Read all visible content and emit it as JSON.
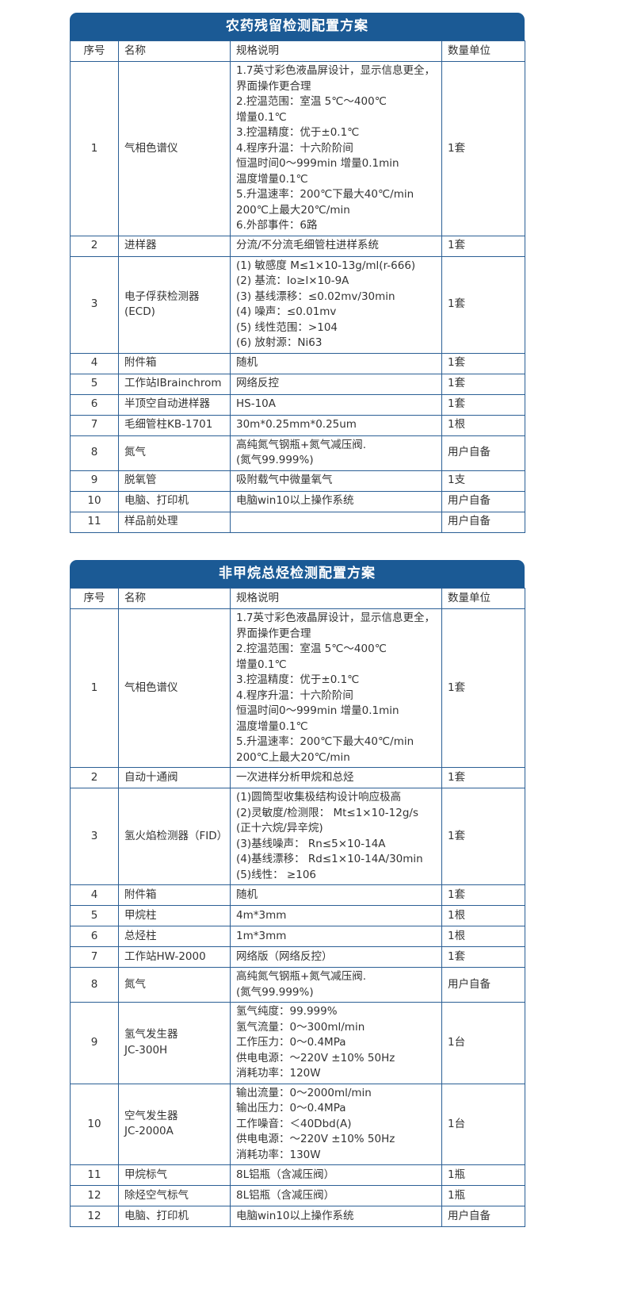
{
  "colors": {
    "accent": "#1b5a95",
    "border": "#2b5f95"
  },
  "tables": [
    {
      "title": "农药残留检测配置方案",
      "headers": [
        "序号",
        "名称",
        "规格说明",
        "数量单位"
      ],
      "rows": [
        [
          "1",
          "气相色谱仪",
          "1.7英寸彩色液晶屏设计，显示信息更全，界面操作更合理\n2.控温范围：室温 5℃～400℃\n增量0.1℃\n3.控温精度：优于±0.1℃\n4.程序升温：十六阶阶间\n恒温时间0～999min 增量0.1min\n温度增量0.1℃\n5.升温速率：200℃下最大40℃/min\n200℃上最大20℃/min\n6.外部事件：6路",
          "1套"
        ],
        [
          "2",
          "进样器",
          "分流/不分流毛细管柱进样系统",
          "1套"
        ],
        [
          "3",
          "电子俘获检测器\n(ECD)",
          "(1) 敏感度 M≤1×10-13g/ml(r-666)\n(2) 基流：Io≥l×10-9A\n(3) 基线漂移：≤0.02mv/30min\n(4) 噪声：≤0.01mv\n(5) 线性范围：>104\n(6) 放射源：Ni63",
          "1套"
        ],
        [
          "4",
          "附件箱",
          "随机",
          "1套"
        ],
        [
          "5",
          "工作站IBrainchrom",
          "网络反控",
          "1套"
        ],
        [
          "6",
          "半顶空自动进样器",
          "HS-10A",
          "1套"
        ],
        [
          "7",
          "毛细管柱KB-1701",
          "30m*0.25mm*0.25um",
          "1根"
        ],
        [
          "8",
          "氮气",
          "高纯氮气钢瓶+氮气减压阀.\n(氮气99.999%)",
          "用户自备"
        ],
        [
          "9",
          "脱氧管",
          "吸附载气中微量氧气",
          "1支"
        ],
        [
          "10",
          "电脑、打印机",
          "电脑win10以上操作系统",
          "用户自备"
        ],
        [
          "11",
          "样品前处理",
          "",
          "用户自备"
        ]
      ]
    },
    {
      "title": "非甲烷总烃检测配置方案",
      "headers": [
        "序号",
        "名称",
        "规格说明",
        "数量单位"
      ],
      "rows": [
        [
          "1",
          "气相色谱仪",
          "1.7英寸彩色液晶屏设计，显示信息更全，界面操作更合理\n2.控温范围：室温 5℃～400℃\n增量0.1℃\n3.控温精度：优于±0.1℃\n4.程序升温：十六阶阶间\n恒温时间0～999min 增量0.1min\n温度增量0.1℃\n5.升温速率：200℃下最大40℃/min\n200℃上最大20℃/min",
          "1套"
        ],
        [
          "2",
          "自动十通阀",
          "一次进样分析甲烷和总烃",
          "1套"
        ],
        [
          "3",
          "氢火焰检测器（FID）",
          "(1)圆筒型收集极结构设计响应极高\n(2)灵敏度/检测限： Mt≤1×10-12g/s\n(正十六烷/异辛烷)\n(3)基线噪声： Rn≤5×10-14A\n(4)基线漂移： Rd≤1×10-14A/30min\n(5)线性： ≥106",
          "1套"
        ],
        [
          "4",
          "附件箱",
          "随机",
          "1套"
        ],
        [
          "5",
          "甲烷柱",
          "4m*3mm",
          "1根"
        ],
        [
          "6",
          "总烃柱",
          "1m*3mm",
          "1根"
        ],
        [
          "7",
          "工作站HW-2000",
          "网络版（网络反控）",
          "1套"
        ],
        [
          "8",
          "氮气",
          "高纯氮气钢瓶+氮气减压阀.\n(氮气99.999%)",
          "用户自备"
        ],
        [
          "9",
          "氢气发生器\nJC-300H",
          "氢气纯度：99.999%\n氢气流量：0～300ml/min\n工作压力：0～0.4MPa\n供电电源：～220V ±10% 50Hz\n消耗功率：120W",
          "1台"
        ],
        [
          "10",
          "空气发生器\nJC-2000A",
          "输出流量：0～2000ml/min\n输出压力：0～0.4MPa\n工作噪音：＜40Dbd(A)\n供电电源：～220V ±10% 50Hz\n消耗功率：130W",
          "1台"
        ],
        [
          "11",
          "甲烷标气",
          "8L铝瓶（含减压阀）",
          "1瓶"
        ],
        [
          "12",
          "除烃空气标气",
          "8L铝瓶（含减压阀）",
          "1瓶"
        ],
        [
          "12",
          "电脑、打印机",
          "电脑win10以上操作系统",
          "用户自备"
        ]
      ]
    }
  ]
}
